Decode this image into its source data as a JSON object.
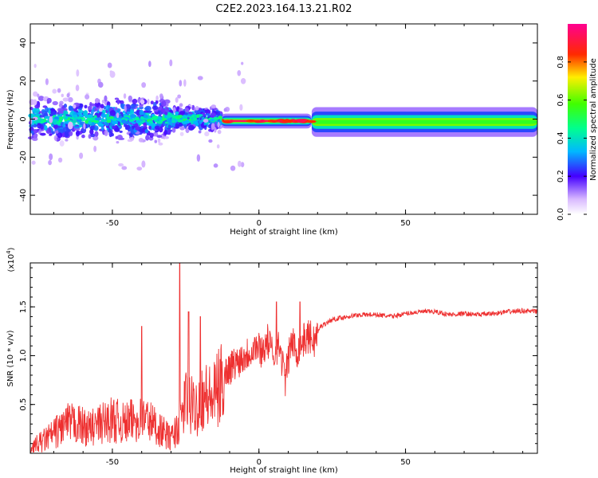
{
  "title": "C2E2.2023.164.13.21.R02",
  "colors": {
    "series": "#ee3030",
    "axis": "#000000"
  },
  "chart_data": [
    {
      "type": "heatmap",
      "title": "C2E2.2023.164.13.21.R02",
      "xlabel": "Height of straight line (km)",
      "ylabel": "Frequency (Hz)",
      "xlim": [
        -78,
        95
      ],
      "ylim": [
        -50,
        50
      ],
      "xticks": [
        -50,
        0,
        50
      ],
      "xtick_labels": [
        "-50",
        "0",
        "50"
      ],
      "yticks": [
        -40,
        -20,
        0,
        20,
        40
      ],
      "ytick_labels": [
        "-40",
        "-20",
        "0",
        "20",
        "40"
      ],
      "colorbar": {
        "label": "Normalized spectral amplitude",
        "range": [
          0,
          1
        ],
        "ticks": [
          0,
          0.2,
          0.4,
          0.6,
          0.8
        ],
        "tick_labels": [
          "0.0",
          "0.2",
          "0.4",
          "0.6",
          "0.8"
        ]
      },
      "bands": [
        {
          "x": [
            -78,
            -13
          ],
          "center_hz": 0,
          "spread_hz": 8,
          "peak_amplitude": 0.45,
          "note": "scattered speckle"
        },
        {
          "x": [
            -13,
            18
          ],
          "center_hz": -1,
          "spread_hz": 1.5,
          "peak_amplitude": 0.95
        },
        {
          "x": [
            18,
            95
          ],
          "center_hz": -1.5,
          "spread_hz": 3,
          "peak_amplitude": 0.55
        }
      ]
    },
    {
      "type": "line",
      "xlabel": "Height of straight line (km)",
      "ylabel": "SNR (10 * v/v)",
      "y_multiplier_label": "(x10",
      "y_multiplier_exp": "4",
      "y_multiplier_close": ")",
      "xlim": [
        -78,
        95
      ],
      "ylim": [
        0,
        1.95
      ],
      "xticks": [
        -50,
        0,
        50
      ],
      "xtick_labels": [
        "-50",
        "0",
        "50"
      ],
      "yticks": [
        0.5,
        1.0,
        1.5
      ],
      "ytick_labels": [
        "0.5",
        "1.0",
        "1.5"
      ],
      "series": [
        {
          "name": "SNR",
          "x": [
            -78,
            -74,
            -70,
            -66,
            -62,
            -58,
            -54,
            -50,
            -46,
            -42,
            -38,
            -34,
            -30,
            -27,
            -25,
            -22,
            -19,
            -16,
            -13,
            -11,
            -9,
            -7,
            -5,
            -3,
            -1,
            1,
            3,
            5,
            7,
            9,
            11,
            13,
            15,
            17,
            19,
            21,
            25,
            30,
            35,
            40,
            45,
            50,
            55,
            60,
            65,
            70,
            75,
            80,
            85,
            90,
            95
          ],
          "values": [
            0.05,
            0.12,
            0.2,
            0.3,
            0.3,
            0.25,
            0.3,
            0.35,
            0.3,
            0.35,
            0.35,
            0.25,
            0.15,
            0.3,
            0.55,
            0.45,
            0.6,
            0.55,
            0.7,
            0.85,
            0.9,
            0.95,
            1.0,
            1.05,
            1.1,
            1.05,
            1.15,
            1.0,
            1.1,
            0.75,
            1.15,
            1.05,
            1.15,
            1.2,
            1.15,
            1.3,
            1.37,
            1.4,
            1.42,
            1.42,
            1.4,
            1.43,
            1.45,
            1.45,
            1.42,
            1.43,
            1.42,
            1.43,
            1.45,
            1.46,
            1.45
          ]
        }
      ],
      "spikes": [
        {
          "x": -27,
          "peak": 1.95
        },
        {
          "x": -24,
          "peak": 1.45
        },
        {
          "x": -40,
          "peak": 1.3
        },
        {
          "x": -20,
          "peak": 1.4
        },
        {
          "x": 6,
          "peak": 1.55
        },
        {
          "x": 14,
          "peak": 1.55
        }
      ]
    }
  ]
}
